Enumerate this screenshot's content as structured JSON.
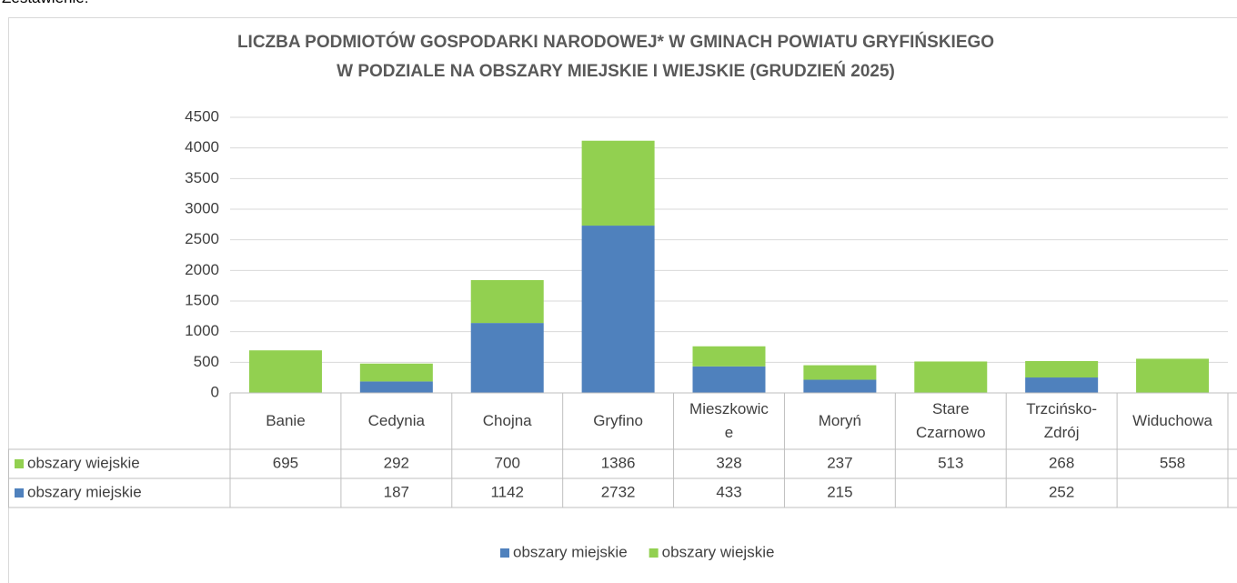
{
  "heading": "Zestawienie:",
  "chart_data": {
    "type": "bar",
    "stacked": true,
    "title": [
      "LICZBA PODMIOTÓW GOSPODARKI NARODOWEJ* W GMINACH POWIATU GRYFIŃSKIEGO",
      "W PODZIALE NA OBSZARY MIEJSKIE I WIEJSKIE (GRUDZIEŃ 2025)"
    ],
    "categories": [
      "Banie",
      "Cedynia",
      "Chojna",
      "Gryfino",
      "Mieszkowice",
      "Moryń",
      "Stare Czarnowo",
      "Trzcińsko-Zdrój",
      "Widuchowa"
    ],
    "series": [
      {
        "name": "obszary miejskie",
        "color": "#4f81bd",
        "values": [
          null,
          187,
          1142,
          2732,
          433,
          215,
          null,
          252,
          null
        ]
      },
      {
        "name": "obszary wiejskie",
        "color": "#92d050",
        "values": [
          695,
          292,
          700,
          1386,
          328,
          237,
          513,
          268,
          558
        ]
      }
    ],
    "ylim": [
      0,
      4500
    ],
    "yticks": [
      0,
      500,
      1000,
      1500,
      2000,
      2500,
      3000,
      3500,
      4000,
      4500
    ],
    "grid": true,
    "legend": "bottom",
    "data_table": true
  }
}
